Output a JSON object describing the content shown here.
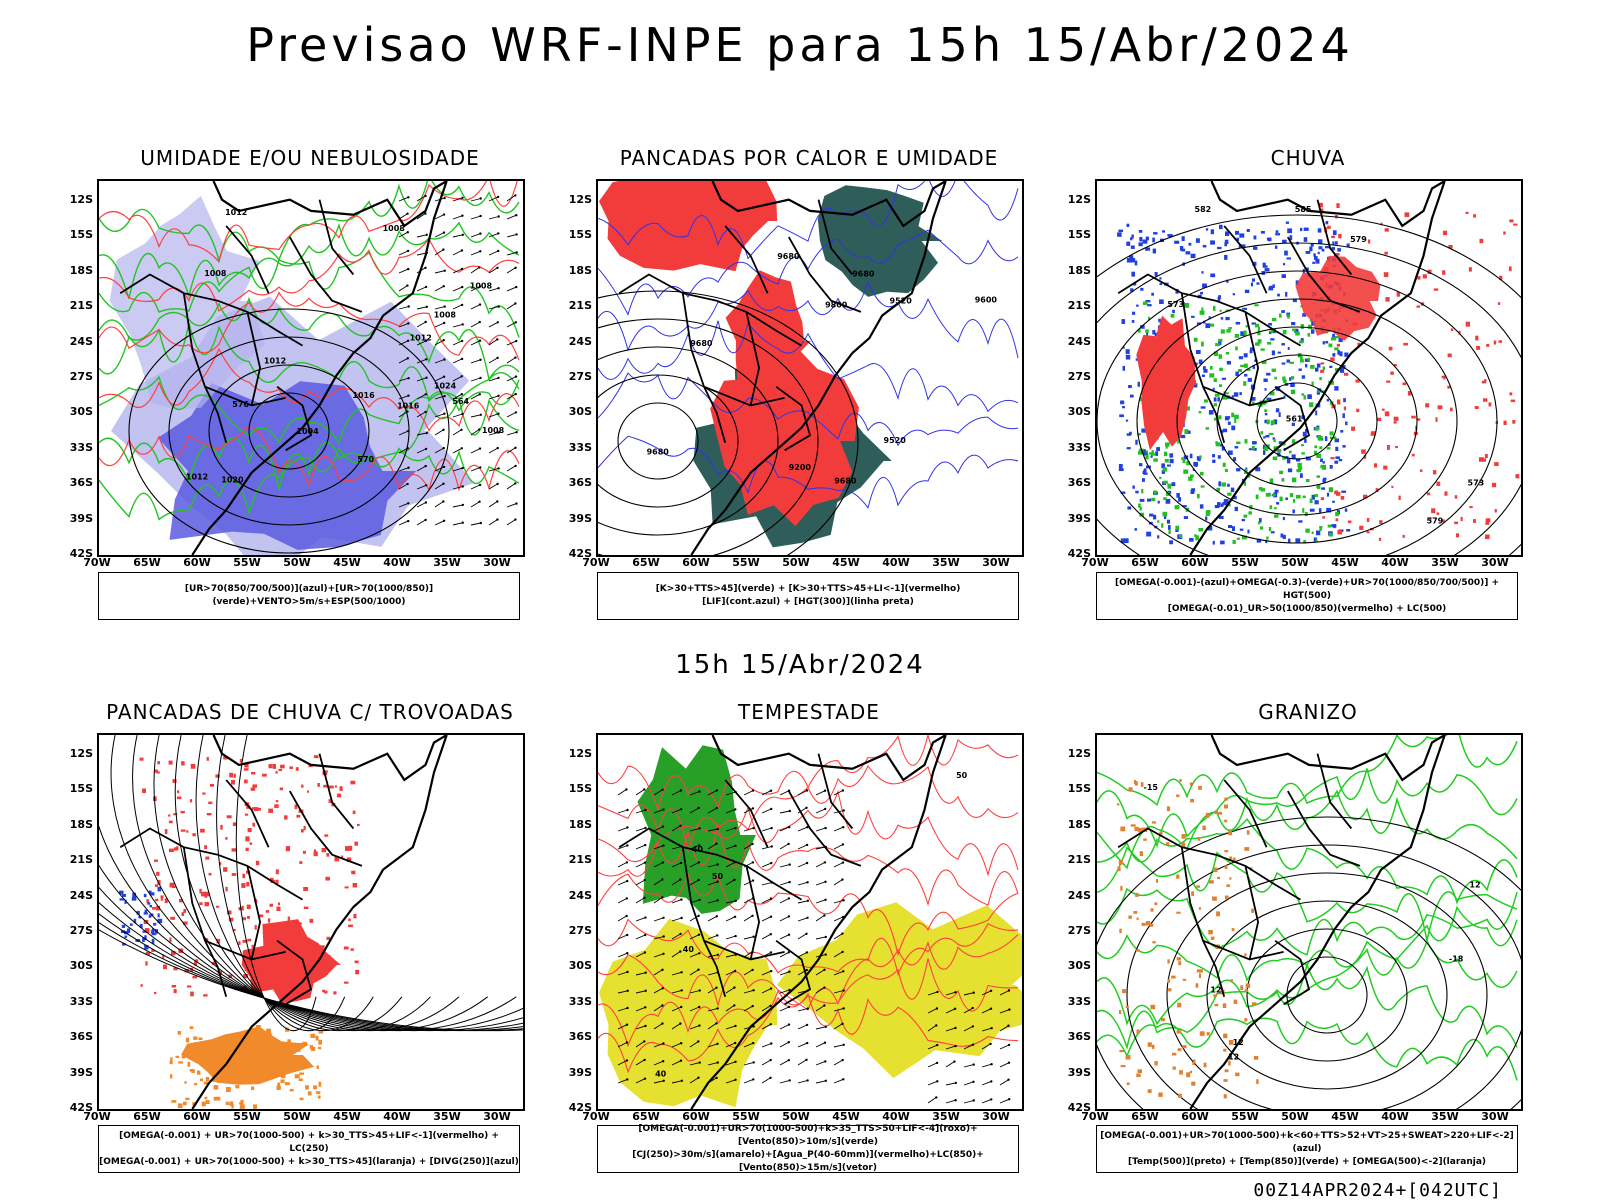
{
  "title": "Previsao WRF-INPE  para 15h 15/Abr/2024",
  "subtitle": "15h 15/Abr/2024",
  "footer": "00Z14APR2024+[042UTC]",
  "lat_labels": [
    "12S",
    "15S",
    "18S",
    "21S",
    "24S",
    "27S",
    "30S",
    "33S",
    "36S",
    "39S",
    "42S"
  ],
  "lon_labels": [
    "70W",
    "65W",
    "60W",
    "55W",
    "50W",
    "45W",
    "40W",
    "35W",
    "30W"
  ],
  "panels": [
    {
      "title": "UMIDADE E/OU NEBULOSIDADE",
      "legend": [
        "[UR>70(850/700/500)](azul)+[UR>70(1000/850)](verde)+VENTO>5m/s+ESP(500/1000)"
      ],
      "contour_labels": [
        "1012",
        "1008",
        "1008",
        "1008",
        "1008",
        "1012",
        "1016",
        "1020",
        "1024",
        "1008",
        "1012",
        "1004",
        "1016",
        "1012",
        "576",
        "570",
        "564"
      ],
      "colors": {
        "fill": "#5a5ae0",
        "fill_light": "#b4b4ee",
        "line_green": "#22c422",
        "line_red": "#ff4040"
      }
    },
    {
      "title": "PANCADAS POR CALOR E UMIDADE",
      "legend": [
        "[K>30+TTS>45](verde) + [K>30+TTS>45+LI<-1](vermelho)",
        "[LIF](cont.azul) + [HGT(300)](linha preta)"
      ],
      "contour_labels": [
        "9680",
        "9680",
        "9680",
        "9680",
        "9600",
        "9680",
        "9520",
        "9800",
        "9520",
        "9200"
      ],
      "colors": {
        "fill_green": "#2f5d5a",
        "fill_red": "#f23c3c",
        "line_blue": "#3232e6"
      }
    },
    {
      "title": "CHUVA",
      "legend": [
        "[OMEGA(-0.001)-(azul)+OMEGA(-0.3)-(verde)+UR>70(1000/850/700/500)] + HGT(500)",
        "[OMEGA(-0.01)_UR>50(1000/850)(vermelho) + LC(500)"
      ],
      "contour_labels": [
        "585",
        "579",
        "573",
        "561",
        "573",
        "582",
        "579"
      ],
      "colors": {
        "fill_red": "#f23c3c",
        "dot_blue": "#2040e0",
        "dot_green": "#20c020"
      }
    },
    {
      "title": "PANCADAS DE CHUVA C/ TROVOADAS",
      "legend": [
        "[OMEGA(-0.001) + UR>70(1000-500) + k>30_TTS>45+LIF<-1](vermelho) + LC(250)",
        "[OMEGA(-0.001) + UR>70(1000-500) + k>30_TTS>45](laranja) + [DIVG(250)](azul)"
      ],
      "contour_labels": [],
      "colors": {
        "fill_red": "#f23c3c",
        "fill_orange": "#f08a2a",
        "dot_blue": "#2040e0"
      }
    },
    {
      "title": "TEMPESTADE",
      "legend": [
        "[OMEGA(-0.001)+UR>70(1000-500)+k>35_TTS>50+LIF<-4](roxo)+[Vento(850)>10m/s](verde)",
        "[CJ(250)>30m/s](amarelo)+[Agua_P(40-60mm)](vermelho)+LC(850)+[Vento(850)>15m/s](vetor)"
      ],
      "contour_labels": [
        "40",
        "40",
        "50",
        "40",
        "50"
      ],
      "colors": {
        "fill_yellow": "#e6e030",
        "fill_green": "#28a028",
        "line_red": "#ff4040"
      }
    },
    {
      "title": "GRANIZO",
      "legend": [
        "[OMEGA(-0.001)+UR>70(1000-500)+k<60+TTS>52+VT>25+SWEAT>220+LIF<-2](azul)",
        "[Temp(500)](preto) + [Temp(850)](verde) + [OMEGA(500)<-2](laranja)"
      ],
      "contour_labels": [
        "12",
        "12",
        "12",
        "-15",
        "-18",
        "12"
      ],
      "colors": {
        "line_green": "#22cc22",
        "dot_orange": "#e08030"
      }
    }
  ]
}
